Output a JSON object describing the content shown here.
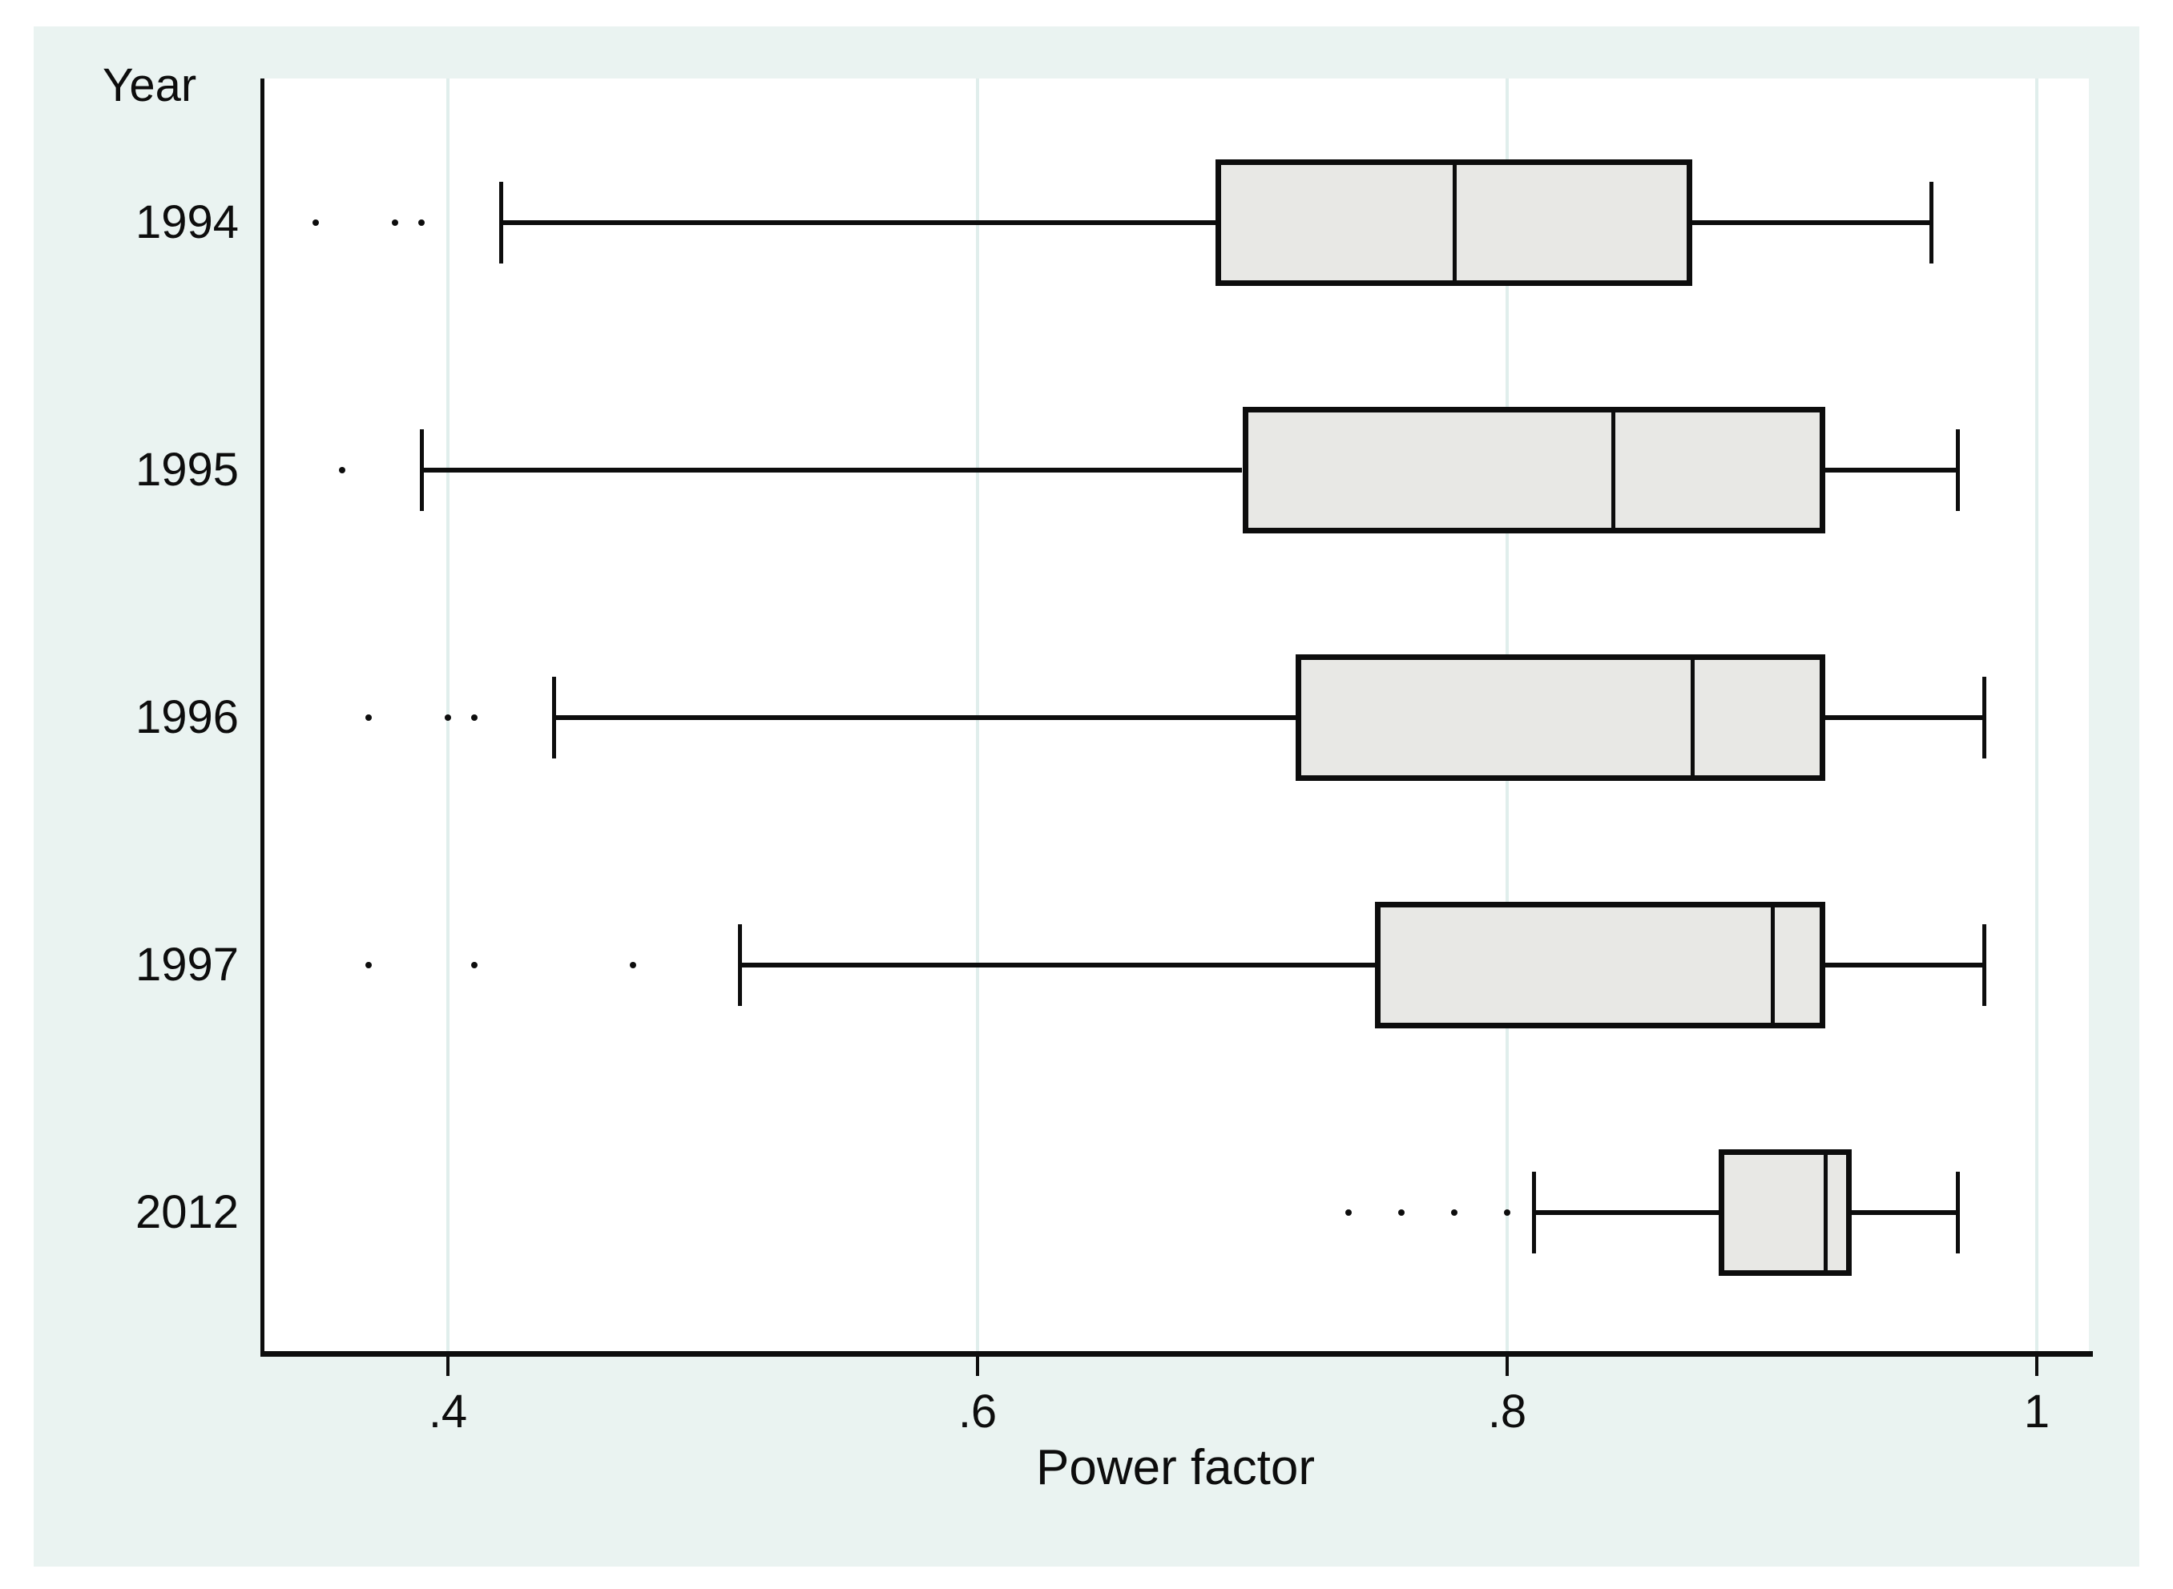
{
  "labels": {
    "y_title": "Year",
    "x_title": "Power factor"
  },
  "chart_data": {
    "type": "boxplot",
    "orientation": "horizontal",
    "title": "",
    "xlabel": "Power factor",
    "ylabel": "Year",
    "xlim": [
      0.33,
      1.02
    ],
    "grid": true,
    "x_ticks": {
      "values": [
        0.4,
        0.6,
        0.8,
        1.0
      ],
      "labels": [
        ".4",
        ".6",
        ".8",
        "1"
      ]
    },
    "categories": [
      "1994",
      "1995",
      "1996",
      "1997",
      "2012"
    ],
    "boxes": [
      {
        "category": "1994",
        "whisker_low": 0.42,
        "q1": 0.69,
        "median": 0.78,
        "q3": 0.87,
        "whisker_high": 0.96,
        "outliers": [
          0.35,
          0.38,
          0.39
        ]
      },
      {
        "category": "1995",
        "whisker_low": 0.39,
        "q1": 0.7,
        "median": 0.84,
        "q3": 0.92,
        "whisker_high": 0.97,
        "outliers": [
          0.36
        ]
      },
      {
        "category": "1996",
        "whisker_low": 0.44,
        "q1": 0.72,
        "median": 0.87,
        "q3": 0.92,
        "whisker_high": 0.98,
        "outliers": [
          0.37,
          0.4,
          0.41
        ]
      },
      {
        "category": "1997",
        "whisker_low": 0.51,
        "q1": 0.75,
        "median": 0.9,
        "q3": 0.92,
        "whisker_high": 0.98,
        "outliers": [
          0.37,
          0.41,
          0.47
        ]
      },
      {
        "category": "2012",
        "whisker_low": 0.81,
        "q1": 0.88,
        "median": 0.92,
        "q3": 0.93,
        "whisker_high": 0.97,
        "outliers": [
          0.74,
          0.76,
          0.78,
          0.8
        ]
      }
    ],
    "colors": {
      "graph_background": "#eaf3f1",
      "plot_background": "#ffffff",
      "gridline": "#e0eeec",
      "box_fill": "#e8e8e5",
      "line": "#0d0d0d"
    }
  }
}
